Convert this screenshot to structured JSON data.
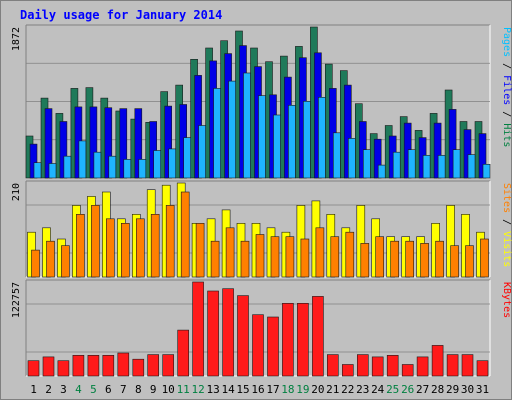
{
  "chart_data": [
    {
      "type": "bar",
      "title": "Daily usage for January 2014",
      "panel": "pages-files-hits",
      "ymax_label": "1872",
      "right_labels": [
        {
          "text": "Pages",
          "color": "#00c0ff"
        },
        {
          "text": " / ",
          "color": "#000000"
        },
        {
          "text": "Files",
          "color": "#0000ff"
        },
        {
          "text": " / ",
          "color": "#000000"
        },
        {
          "text": "Hits",
          "color": "#008040"
        }
      ],
      "series": [
        {
          "name": "Hits",
          "color": "#1f7a5a",
          "values": [
            520,
            990,
            800,
            1110,
            1120,
            990,
            830,
            730,
            690,
            1070,
            1150,
            1470,
            1610,
            1700,
            1820,
            1610,
            1440,
            1510,
            1630,
            1870,
            1410,
            1330,
            920,
            550,
            650,
            760,
            590,
            800,
            1090,
            700,
            700
          ]
        },
        {
          "name": "Files",
          "color": "#0000e6",
          "values": [
            420,
            860,
            700,
            880,
            880,
            870,
            860,
            860,
            700,
            890,
            910,
            1270,
            1450,
            1540,
            1640,
            1380,
            1030,
            1250,
            1490,
            1550,
            1110,
            1150,
            700,
            480,
            520,
            680,
            500,
            680,
            850,
            600,
            550
          ]
        },
        {
          "name": "Pages",
          "color": "#1fb4ff",
          "values": [
            190,
            180,
            270,
            460,
            320,
            270,
            230,
            230,
            340,
            360,
            500,
            650,
            1110,
            1200,
            1300,
            1020,
            780,
            900,
            950,
            1000,
            560,
            490,
            350,
            160,
            320,
            350,
            280,
            280,
            350,
            290,
            170
          ]
        }
      ]
    },
    {
      "type": "bar",
      "panel": "sites-visits",
      "ymax_label": "210",
      "right_labels": [
        {
          "text": "Sites",
          "color": "#ff8000"
        },
        {
          "text": " / ",
          "color": "#000000"
        },
        {
          "text": "Visits",
          "color": "#ffff00"
        }
      ],
      "series": [
        {
          "name": "Visits",
          "color": "#ffff00",
          "values": [
            100,
            110,
            85,
            160,
            180,
            190,
            130,
            140,
            195,
            205,
            210,
            120,
            130,
            150,
            120,
            120,
            110,
            100,
            160,
            170,
            140,
            110,
            160,
            130,
            90,
            90,
            90,
            120,
            160,
            140,
            100
          ]
        },
        {
          "name": "Sites",
          "color": "#ff8000",
          "values": [
            60,
            80,
            70,
            140,
            160,
            130,
            120,
            130,
            140,
            160,
            190,
            120,
            80,
            110,
            80,
            95,
            90,
            90,
            85,
            110,
            90,
            100,
            75,
            90,
            80,
            80,
            75,
            80,
            70,
            70,
            85
          ]
        }
      ]
    },
    {
      "type": "bar",
      "panel": "kbytes",
      "ymax_label": "122757",
      "right_labels": [
        {
          "text": "KBytes",
          "color": "#ff0000"
        }
      ],
      "series": [
        {
          "name": "KBytes",
          "color": "#ff1a1a",
          "values": [
            20000,
            25000,
            20000,
            27000,
            27000,
            27000,
            30000,
            22000,
            28000,
            28000,
            60000,
            122757,
            111000,
            114000,
            105000,
            80000,
            77000,
            95000,
            95000,
            104000,
            28000,
            15000,
            28000,
            25000,
            27000,
            15000,
            25000,
            40000,
            28000,
            28000,
            20000
          ]
        }
      ]
    }
  ],
  "x_labels": [
    "1",
    "2",
    "3",
    "4",
    "5",
    "6",
    "7",
    "8",
    "9",
    "10",
    "11",
    "12",
    "13",
    "14",
    "15",
    "16",
    "17",
    "18",
    "19",
    "20",
    "21",
    "22",
    "23",
    "24",
    "25",
    "26",
    "27",
    "28",
    "29",
    "30",
    "31"
  ],
  "weekend_days": [
    4,
    5,
    11,
    12,
    18,
    19,
    25,
    26
  ],
  "colors": {
    "background": "#c0c0c0",
    "border": "#808080",
    "title": "#0000ff",
    "weekday_label": "#000000",
    "weekend_label": "#008040",
    "gridline": "#808080"
  }
}
